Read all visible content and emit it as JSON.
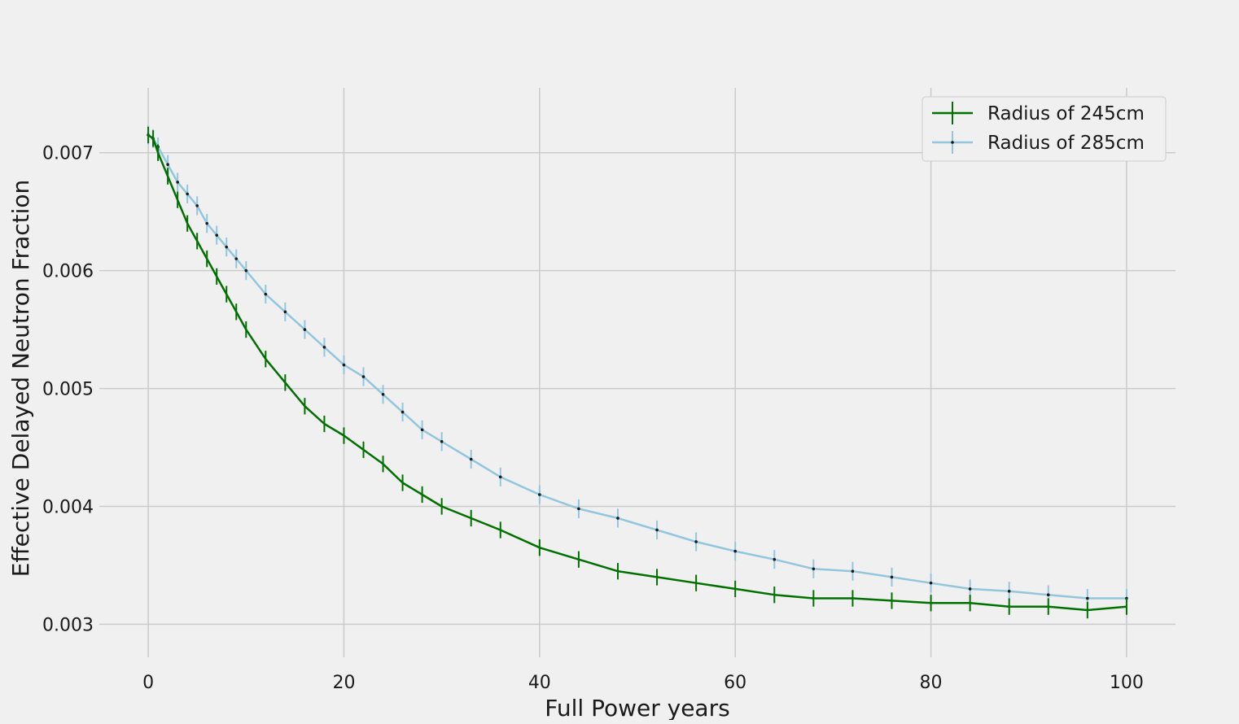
{
  "chart_data": {
    "type": "line",
    "title": "",
    "xlabel": "Full Power years",
    "ylabel": "Effective Delayed Neutron Fraction",
    "xlim": [
      -5,
      105
    ],
    "ylim": [
      0.00272,
      0.00755
    ],
    "xticks": [
      0,
      20,
      40,
      60,
      80,
      100
    ],
    "xtick_labels": [
      "0",
      "20",
      "40",
      "60",
      "80",
      "100"
    ],
    "yticks": [
      0.003,
      0.004,
      0.005,
      0.006,
      0.007
    ],
    "ytick_labels": [
      "0.003",
      "0.004",
      "0.005",
      "0.006",
      "0.007"
    ],
    "grid": true,
    "legend_position": "top-right",
    "x": [
      0,
      0.5,
      1,
      2,
      3,
      4,
      5,
      6,
      7,
      8,
      9,
      10,
      12,
      14,
      16,
      18,
      20,
      22,
      24,
      26,
      28,
      30,
      33,
      36,
      40,
      44,
      48,
      52,
      56,
      60,
      64,
      68,
      72,
      76,
      80,
      84,
      88,
      92,
      96,
      100
    ],
    "series": [
      {
        "name": "Radius of 245cm",
        "color": "#007000",
        "marker": "none",
        "error": 7e-05,
        "values": [
          0.00715,
          0.00712,
          0.007,
          0.0068,
          0.0066,
          0.0064,
          0.00625,
          0.0061,
          0.00595,
          0.0058,
          0.00565,
          0.0055,
          0.00525,
          0.00505,
          0.00485,
          0.0047,
          0.0046,
          0.00448,
          0.00436,
          0.0042,
          0.0041,
          0.004,
          0.0039,
          0.0038,
          0.00365,
          0.00355,
          0.00345,
          0.0034,
          0.00335,
          0.0033,
          0.00325,
          0.00322,
          0.00322,
          0.0032,
          0.00318,
          0.00318,
          0.00315,
          0.00315,
          0.00312,
          0.00315
        ]
      },
      {
        "name": "Radius of 285cm",
        "color": "#92c6dd",
        "marker": "dot",
        "error": 8e-05,
        "values": [
          0.00715,
          0.00712,
          0.00705,
          0.0069,
          0.00675,
          0.00665,
          0.00655,
          0.0064,
          0.0063,
          0.0062,
          0.0061,
          0.006,
          0.0058,
          0.00565,
          0.0055,
          0.00535,
          0.0052,
          0.0051,
          0.00495,
          0.0048,
          0.00465,
          0.00455,
          0.0044,
          0.00425,
          0.0041,
          0.00398,
          0.0039,
          0.0038,
          0.0037,
          0.00362,
          0.00355,
          0.00347,
          0.00345,
          0.0034,
          0.00335,
          0.0033,
          0.00328,
          0.00325,
          0.00322,
          0.00322
        ]
      }
    ]
  }
}
